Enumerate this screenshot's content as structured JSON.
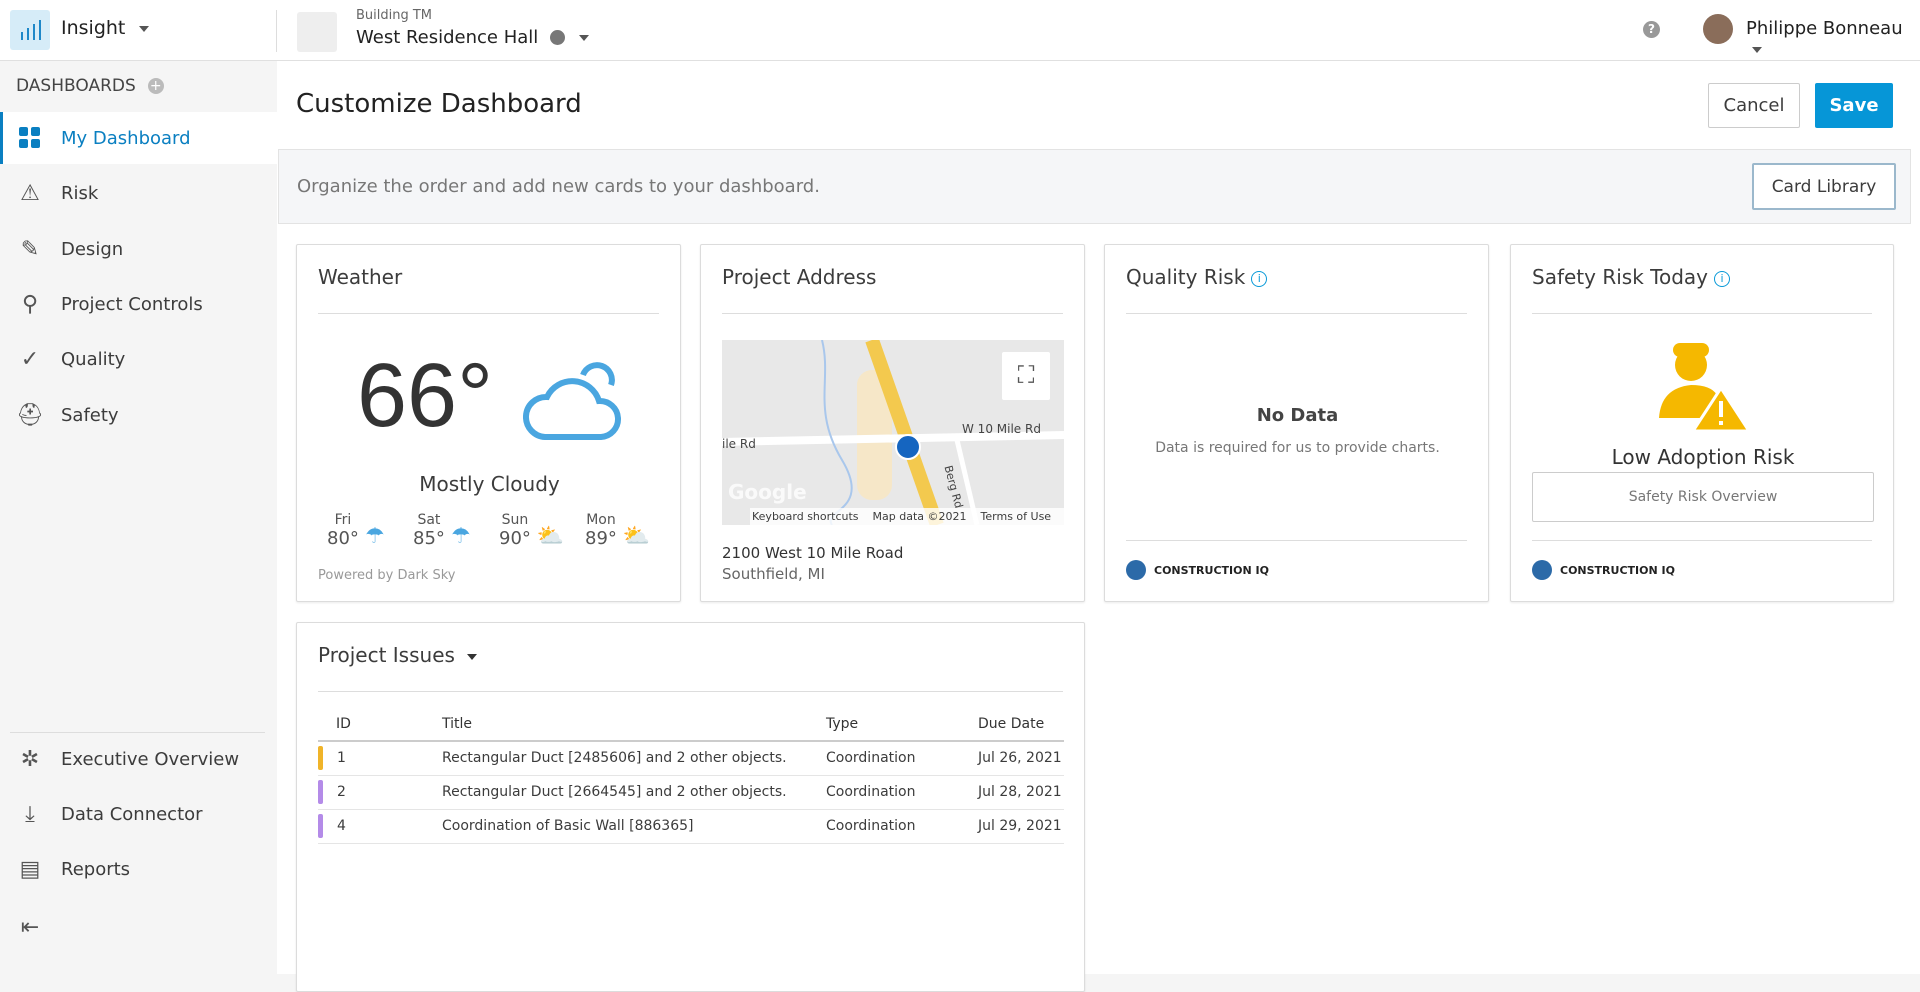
{
  "topbar": {
    "app_name": "Insight",
    "project_group": "Building TM",
    "project_name": "West Residence Hall",
    "user_name": "Philippe Bonneau"
  },
  "sidebar": {
    "section": "DASHBOARDS",
    "items": [
      {
        "label": "My Dashboard",
        "icon": "grid-icon"
      },
      {
        "label": "Risk",
        "icon": "warning-icon"
      },
      {
        "label": "Design",
        "icon": "pencil-icon"
      },
      {
        "label": "Project Controls",
        "icon": "hierarchy-icon"
      },
      {
        "label": "Quality",
        "icon": "check-icon"
      },
      {
        "label": "Safety",
        "icon": "hardhat-icon"
      }
    ],
    "bottom_items": [
      {
        "label": "Executive Overview",
        "icon": "network-icon"
      },
      {
        "label": "Data Connector",
        "icon": "download-icon"
      },
      {
        "label": "Reports",
        "icon": "report-icon"
      }
    ]
  },
  "main": {
    "title": "Customize Dashboard",
    "cancel": "Cancel",
    "save": "Save",
    "banner": "Organize the order and add new cards to your dashboard.",
    "card_library": "Card Library"
  },
  "weather": {
    "title": "Weather",
    "temp": "66°",
    "condition": "Mostly Cloudy",
    "forecast": [
      {
        "day": "Fri",
        "temp": "80°",
        "icon": "rain-icon"
      },
      {
        "day": "Sat",
        "temp": "85°",
        "icon": "rain-icon"
      },
      {
        "day": "Sun",
        "temp": "90°",
        "icon": "partly-sunny-icon"
      },
      {
        "day": "Mon",
        "temp": "89°",
        "icon": "partly-sunny-icon"
      }
    ],
    "powered": "Powered by Dark Sky"
  },
  "address": {
    "title": "Project Address",
    "line1": "2100 West 10 Mile Road",
    "line2": "Southfield, MI",
    "map": {
      "road1": "W 10 Mile Rd",
      "road2": "ile Rd",
      "road3": "Berg Rd",
      "logo": "Google",
      "shortcuts": "Keyboard shortcuts",
      "mapdata": "Map data ©2021",
      "terms": "Terms of Use"
    }
  },
  "quality": {
    "title": "Quality Risk",
    "nodata": "No Data",
    "msg": "Data is required for us to provide charts.",
    "brand": "CONSTRUCTION IQ"
  },
  "safety": {
    "title": "Safety Risk Today",
    "status": "Low Adoption Risk",
    "button": "Safety Risk Overview",
    "brand": "CONSTRUCTION IQ"
  },
  "issues": {
    "title": "Project Issues",
    "columns": [
      "ID",
      "Title",
      "Type",
      "Due Date"
    ],
    "rows": [
      {
        "id": "1",
        "title": "Rectangular Duct [2485606] and 2 other objects.",
        "type": "Coordination",
        "due": "Jul 26, 2021",
        "color": "#f0b429"
      },
      {
        "id": "2",
        "title": "Rectangular Duct [2664545] and 2 other objects.",
        "type": "Coordination",
        "due": "Jul 28, 2021",
        "color": "#b48be8"
      },
      {
        "id": "4",
        "title": "Coordination of Basic Wall [886365]",
        "type": "Coordination",
        "due": "Jul 29, 2021",
        "color": "#b48be8"
      }
    ]
  }
}
